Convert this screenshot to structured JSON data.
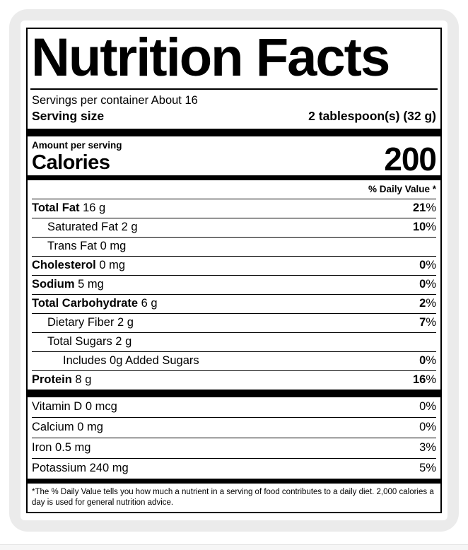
{
  "label": {
    "title": "Nutrition Facts",
    "servings_per_container": "Servings per container About 16",
    "serving_size_label": "Serving size",
    "serving_size_value": "2 tablespoon(s) (32 g)",
    "amount_per_serving": "Amount per serving",
    "calories_label": "Calories",
    "calories_value": "200",
    "daily_value_header": "% Daily Value *",
    "nutrients": [
      {
        "name": "Total Fat",
        "amount": "16 g",
        "dv": "21%",
        "bold": true,
        "indent": 0,
        "bold_dv": true
      },
      {
        "name": "Saturated Fat",
        "amount": "2 g",
        "dv": "10%",
        "bold": false,
        "indent": 1,
        "bold_dv": true
      },
      {
        "name": "Trans Fat",
        "amount": "0 mg",
        "dv": "",
        "bold": false,
        "indent": 1,
        "bold_dv": false
      },
      {
        "name": "Cholesterol",
        "amount": "0 mg",
        "dv": "0%",
        "bold": true,
        "indent": 0,
        "bold_dv": true
      },
      {
        "name": "Sodium",
        "amount": "5 mg",
        "dv": "0%",
        "bold": true,
        "indent": 0,
        "bold_dv": true
      },
      {
        "name": "Total Carbohydrate",
        "amount": "6 g",
        "dv": "2%",
        "bold": true,
        "indent": 0,
        "bold_dv": true
      },
      {
        "name": "Dietary Fiber",
        "amount": "2 g",
        "dv": "7%",
        "bold": false,
        "indent": 1,
        "bold_dv": true
      },
      {
        "name": "Total Sugars",
        "amount": "2 g",
        "dv": "",
        "bold": false,
        "indent": 1,
        "bold_dv": false
      },
      {
        "name": "Includes 0g Added Sugars",
        "amount": "",
        "dv": "0%",
        "bold": false,
        "indent": 2,
        "bold_dv": true
      },
      {
        "name": "Protein",
        "amount": "8 g",
        "dv": "16%",
        "bold": true,
        "indent": 0,
        "bold_dv": true
      }
    ],
    "micronutrients": [
      {
        "name": "Vitamin D",
        "amount": "0 mcg",
        "dv": "0%"
      },
      {
        "name": "Calcium",
        "amount": "0 mg",
        "dv": "0%"
      },
      {
        "name": "Iron",
        "amount": "0.5 mg",
        "dv": "3%"
      },
      {
        "name": "Potassium",
        "amount": "240 mg",
        "dv": "5%"
      }
    ],
    "footnote": "*The % Daily Value tells you how much a nutrient in a serving of food contributes to a daily diet. 2,000 calories a day is used for general nutrition advice."
  },
  "colors": {
    "card_background": "#ebebeb",
    "label_background": "#ffffff",
    "text": "#000000"
  }
}
